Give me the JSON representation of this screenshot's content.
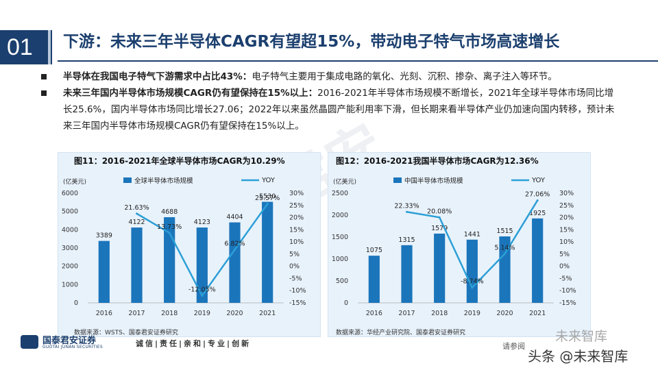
{
  "header": {
    "section_number": "01",
    "title": "下游：未来三年半导体CAGR有望超15%，带动电子特气市场高速增长"
  },
  "bullets": [
    {
      "bold": "半导体在我国电子特气下游需求中占比43%：",
      "text": "电子特气主要用于集成电路的氧化、光刻、沉积、掺杂、离子注入等环节。"
    },
    {
      "bold": "未来三年国内半导体市场规模CAGR仍有望保持在15%以上：",
      "text": "2016-2021年半导体市场规模不断增长，2021年全球半导体市场同比增长25.6%，国内半导体市场同比增长27.06；2022年以来虽然晶圆产能利用率下滑，但长期来看半导体产业仍加速向国内转移，预计未来三年国内半导体市场规模CAGR仍有望保持在15%以上。"
    }
  ],
  "colors": {
    "bar": "#1b75bb",
    "line": "#2c9fd6",
    "panel_bg": "#e8f2fb",
    "brand": "#1b3f6e"
  },
  "chart_data": [
    {
      "type": "bar",
      "title": "图11：2016-2021年全球半导体市场CAGR为10.29%",
      "unit_label": "(亿美元)",
      "categories": [
        "2016",
        "2017",
        "2018",
        "2019",
        "2020",
        "2021"
      ],
      "series": [
        {
          "name": "全球半导体市场规模",
          "type": "bar",
          "axis": "left",
          "values": [
            3389,
            4122,
            4688,
            4123,
            4404,
            5530
          ],
          "labels": [
            "3389",
            "4122",
            "4688",
            "4123",
            "4404",
            "5530"
          ]
        },
        {
          "name": "YOY",
          "type": "line",
          "axis": "right",
          "values": [
            21.63,
            13.73,
            -12.05,
            6.82,
            25.57
          ],
          "x": [
            "2017",
            "2018",
            "2019",
            "2020",
            "2021"
          ],
          "labels": [
            "21.63%",
            "13.73%",
            "-12.05%",
            "6.82%",
            "25.57%"
          ]
        }
      ],
      "ylim_left": [
        0,
        6000
      ],
      "yticks_left": [
        "0",
        "1000",
        "2000",
        "3000",
        "4000",
        "5000",
        "6000"
      ],
      "ylim_right": [
        -15,
        30
      ],
      "yticks_right": [
        "-15%",
        "-10%",
        "-5%",
        "0%",
        "5%",
        "10%",
        "15%",
        "20%",
        "25%",
        "30%"
      ],
      "source": "数据来源：WSTS、国泰君安证券研究"
    },
    {
      "type": "bar",
      "title": "图12：2016-2021我国半导体市场CAGR为12.36%",
      "unit_label": "(亿美元)",
      "categories": [
        "2016",
        "2017",
        "2018",
        "2019",
        "2020",
        "2021"
      ],
      "series": [
        {
          "name": "中国半导体市场规模",
          "type": "bar",
          "axis": "left",
          "values": [
            1075,
            1315,
            1579,
            1441,
            1515,
            1925
          ],
          "labels": [
            "1075",
            "1315",
            "1579",
            "1441",
            "1515",
            "1925"
          ]
        },
        {
          "name": "YOY",
          "type": "line",
          "axis": "right",
          "values": [
            22.33,
            20.08,
            -8.74,
            5.14,
            27.06
          ],
          "x": [
            "2017",
            "2018",
            "2019",
            "2020",
            "2021"
          ],
          "labels": [
            "22.33%",
            "20.08%",
            "-8.74%",
            "5.14%",
            "27.06%"
          ]
        }
      ],
      "ylim_left": [
        0,
        2500
      ],
      "yticks_left": [
        "0",
        "500",
        "1000",
        "1500",
        "2000",
        "2500"
      ],
      "ylim_right": [
        -15,
        30
      ],
      "yticks_right": [
        "-15%",
        "-10%",
        "-5%",
        "0%",
        "5%",
        "10%",
        "15%",
        "20%",
        "25%",
        "30%"
      ],
      "source": "数据来源：华经产业研究院、国泰君安证券研究"
    }
  ],
  "footer": {
    "company": "国泰君安证券",
    "company_en": "GUOTAI JUNAN SECURITIES",
    "slogan": "诚信|责任|亲和|专业|创新",
    "more": "请参阅",
    "watermark_top": "未来智库",
    "watermark_bottom": "头条 @未来智库"
  }
}
